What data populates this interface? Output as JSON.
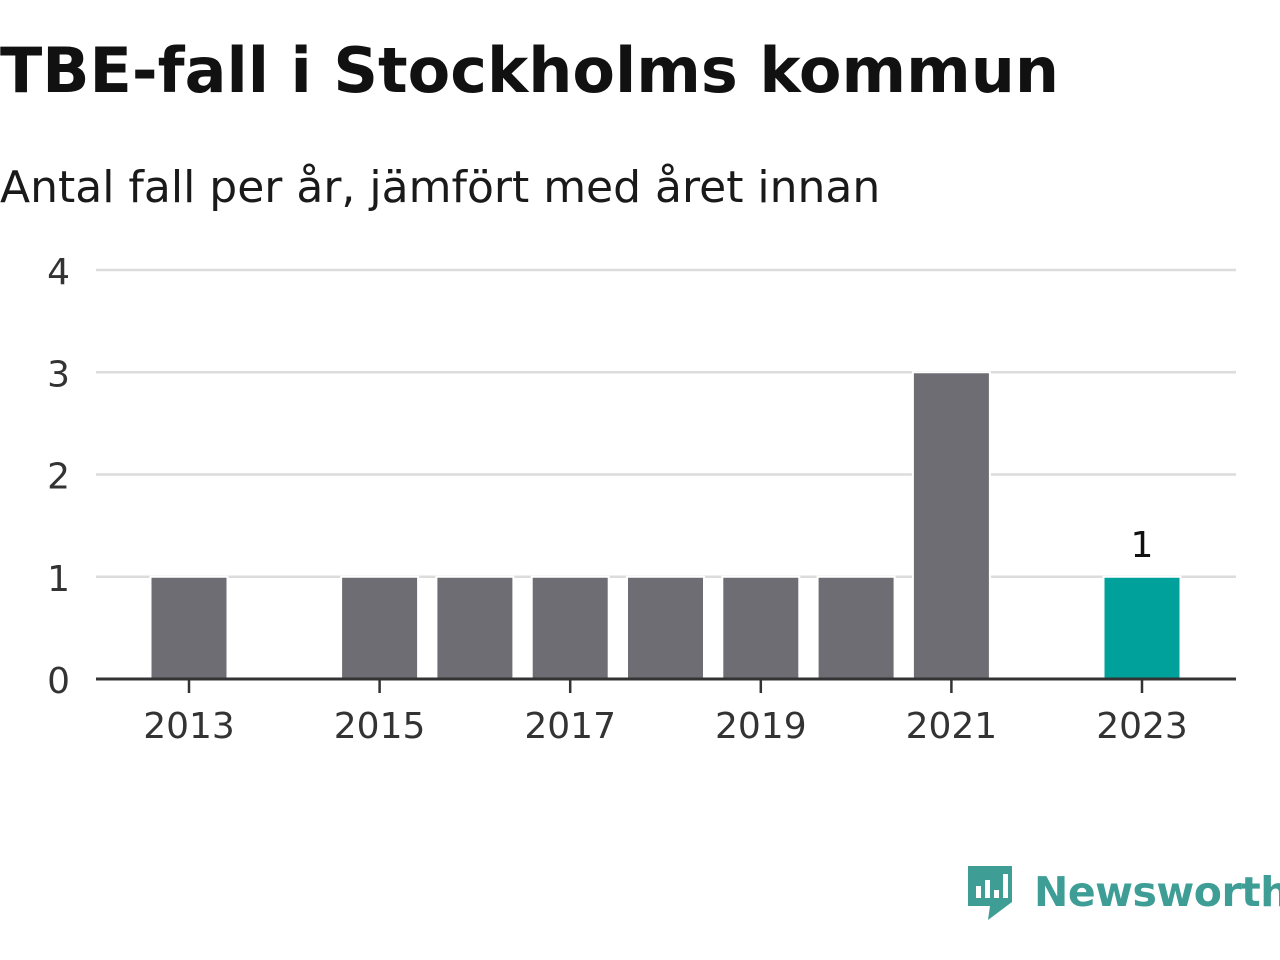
{
  "header": {
    "title": "TBE-fall i Stockholms kommun",
    "subtitle": "Antal fall per år, jämfört med året innan"
  },
  "chart_data": {
    "type": "bar",
    "title": "TBE-fall i Stockholms kommun",
    "subtitle": "Antal fall per år, jämfört med året innan",
    "categories": [
      "2013",
      "2014",
      "2015",
      "2016",
      "2017",
      "2018",
      "2019",
      "2020",
      "2021",
      "2022",
      "2023"
    ],
    "values": [
      1,
      0,
      1,
      1,
      1,
      1,
      1,
      1,
      3,
      0,
      1
    ],
    "highlight_index": 10,
    "highlight_label": "1",
    "x_tick_labels": [
      "2013",
      "2015",
      "2017",
      "2019",
      "2021",
      "2023"
    ],
    "y_tick_labels": [
      "0",
      "1",
      "2",
      "3",
      "4"
    ],
    "ylim": [
      0,
      4
    ],
    "xlabel": "",
    "ylabel": "",
    "grid": true,
    "colors": {
      "bar": "#6e6d73",
      "highlight": "#00a19a",
      "grid": "#dcdcdc",
      "axis": "#333333"
    }
  },
  "branding": {
    "name": "Newsworthy",
    "icon": "newsworthy-logo-icon",
    "color": "#3e9e96"
  }
}
